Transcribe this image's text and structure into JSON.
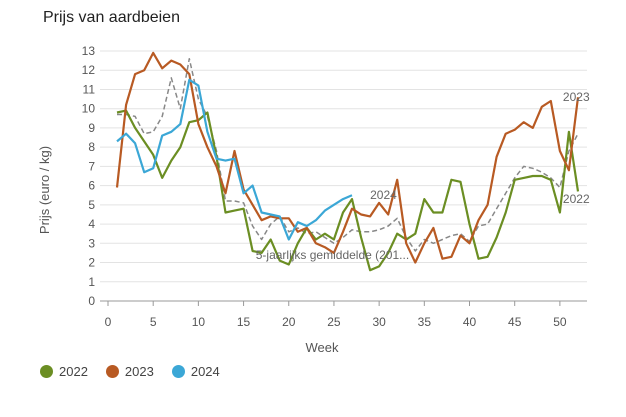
{
  "title": "Prijs van aardbeien",
  "chart_data": {
    "type": "line",
    "title": "Prijs van aardbeien",
    "xlabel": "Week",
    "ylabel": "Prijs (euro / kg)",
    "xlim": [
      0,
      52
    ],
    "ylim": [
      0,
      13
    ],
    "xticks": [
      0,
      5,
      10,
      15,
      20,
      25,
      30,
      35,
      40,
      45,
      50
    ],
    "yticks": [
      0,
      1,
      2,
      3,
      4,
      5,
      6,
      7,
      8,
      9,
      10,
      11,
      12,
      13
    ],
    "grid": true,
    "legend_position": "bottom-left",
    "series": [
      {
        "name": "2022",
        "color": "#6b8e23",
        "points": [
          [
            1,
            9.8
          ],
          [
            2,
            9.9
          ],
          [
            3,
            9.0
          ],
          [
            4,
            8.3
          ],
          [
            5,
            7.6
          ],
          [
            6,
            6.4
          ],
          [
            7,
            7.3
          ],
          [
            8,
            8.0
          ],
          [
            9,
            9.3
          ],
          [
            10,
            9.4
          ],
          [
            11,
            9.8
          ],
          [
            12,
            7.5
          ],
          [
            13,
            4.6
          ],
          [
            14,
            4.7
          ],
          [
            15,
            4.8
          ],
          [
            16,
            2.6
          ],
          [
            17,
            2.5
          ],
          [
            18,
            3.2
          ],
          [
            19,
            2.1
          ],
          [
            20,
            1.9
          ],
          [
            21,
            3.0
          ],
          [
            22,
            3.8
          ],
          [
            23,
            3.2
          ],
          [
            24,
            3.5
          ],
          [
            25,
            3.2
          ],
          [
            26,
            4.6
          ],
          [
            27,
            5.3
          ],
          [
            28,
            3.3
          ],
          [
            29,
            1.6
          ],
          [
            30,
            1.8
          ],
          [
            31,
            2.5
          ],
          [
            32,
            3.5
          ],
          [
            33,
            3.2
          ],
          [
            34,
            3.5
          ],
          [
            35,
            5.3
          ],
          [
            36,
            4.6
          ],
          [
            37,
            4.6
          ],
          [
            38,
            6.3
          ],
          [
            39,
            6.2
          ],
          [
            40,
            4.0
          ],
          [
            41,
            2.2
          ],
          [
            42,
            2.3
          ],
          [
            43,
            3.3
          ],
          [
            44,
            4.6
          ],
          [
            45,
            6.3
          ],
          [
            46,
            6.4
          ],
          [
            47,
            6.5
          ],
          [
            48,
            6.5
          ],
          [
            49,
            6.3
          ],
          [
            50,
            4.6
          ],
          [
            51,
            8.8
          ],
          [
            52,
            5.7
          ]
        ]
      },
      {
        "name": "2023",
        "color": "#b85a23",
        "points": [
          [
            1,
            5.9
          ],
          [
            2,
            10.2
          ],
          [
            3,
            11.8
          ],
          [
            4,
            12.0
          ],
          [
            5,
            12.9
          ],
          [
            6,
            12.1
          ],
          [
            7,
            12.5
          ],
          [
            8,
            12.3
          ],
          [
            9,
            11.8
          ],
          [
            10,
            9.2
          ],
          [
            11,
            8.0
          ],
          [
            12,
            7.0
          ],
          [
            13,
            5.6
          ],
          [
            14,
            7.8
          ],
          [
            15,
            5.8
          ],
          [
            16,
            5.0
          ],
          [
            17,
            4.2
          ],
          [
            18,
            4.4
          ],
          [
            19,
            4.3
          ],
          [
            20,
            4.3
          ],
          [
            21,
            3.6
          ],
          [
            22,
            3.8
          ],
          [
            23,
            3.0
          ],
          [
            24,
            2.8
          ],
          [
            25,
            2.5
          ],
          [
            26,
            3.6
          ],
          [
            27,
            4.8
          ],
          [
            28,
            4.5
          ],
          [
            29,
            4.4
          ],
          [
            30,
            5.1
          ],
          [
            31,
            4.5
          ],
          [
            32,
            6.3
          ],
          [
            33,
            3.0
          ],
          [
            34,
            2.0
          ],
          [
            35,
            3.0
          ],
          [
            36,
            3.8
          ],
          [
            37,
            2.2
          ],
          [
            38,
            2.3
          ],
          [
            39,
            3.4
          ],
          [
            40,
            3.0
          ],
          [
            41,
            4.2
          ],
          [
            42,
            5.0
          ],
          [
            43,
            7.5
          ],
          [
            44,
            8.7
          ],
          [
            45,
            8.9
          ],
          [
            46,
            9.3
          ],
          [
            47,
            9.0
          ],
          [
            48,
            10.1
          ],
          [
            49,
            10.4
          ],
          [
            50,
            7.8
          ],
          [
            51,
            6.8
          ],
          [
            52,
            10.6
          ]
        ]
      },
      {
        "name": "2024",
        "color": "#3ba7d6",
        "points": [
          [
            1,
            8.3
          ],
          [
            2,
            8.7
          ],
          [
            3,
            8.2
          ],
          [
            4,
            6.7
          ],
          [
            5,
            6.9
          ],
          [
            6,
            8.6
          ],
          [
            7,
            8.8
          ],
          [
            8,
            9.2
          ],
          [
            9,
            11.5
          ],
          [
            10,
            11.2
          ],
          [
            11,
            8.8
          ],
          [
            12,
            7.4
          ],
          [
            13,
            7.3
          ],
          [
            14,
            7.4
          ],
          [
            15,
            5.6
          ],
          [
            16,
            6.0
          ],
          [
            17,
            4.6
          ],
          [
            18,
            4.5
          ],
          [
            19,
            4.4
          ],
          [
            20,
            3.2
          ],
          [
            21,
            4.1
          ],
          [
            22,
            3.9
          ],
          [
            23,
            4.2
          ],
          [
            24,
            4.7
          ],
          [
            25,
            5.0
          ],
          [
            26,
            5.3
          ],
          [
            27,
            5.5
          ]
        ]
      },
      {
        "name": "5-jaarlijks gemiddelde (201...",
        "color": "#888888",
        "dashed": true,
        "points": [
          [
            1,
            9.7
          ],
          [
            2,
            9.7
          ],
          [
            3,
            9.6
          ],
          [
            4,
            8.7
          ],
          [
            5,
            8.8
          ],
          [
            6,
            9.6
          ],
          [
            7,
            11.6
          ],
          [
            8,
            10.0
          ],
          [
            9,
            12.6
          ],
          [
            10,
            10.5
          ],
          [
            11,
            9.6
          ],
          [
            12,
            7.8
          ],
          [
            13,
            5.2
          ],
          [
            14,
            5.2
          ],
          [
            15,
            5.1
          ],
          [
            16,
            3.9
          ],
          [
            17,
            3.2
          ],
          [
            18,
            4.0
          ],
          [
            19,
            4.4
          ],
          [
            20,
            3.6
          ],
          [
            21,
            3.8
          ],
          [
            22,
            3.5
          ],
          [
            23,
            3.6
          ],
          [
            24,
            3.3
          ],
          [
            25,
            3.0
          ],
          [
            26,
            3.3
          ],
          [
            27,
            3.7
          ],
          [
            28,
            3.6
          ],
          [
            29,
            3.6
          ],
          [
            30,
            3.7
          ],
          [
            31,
            3.9
          ],
          [
            32,
            4.3
          ],
          [
            33,
            3.3
          ],
          [
            34,
            2.6
          ],
          [
            35,
            3.2
          ],
          [
            36,
            3.0
          ],
          [
            37,
            3.2
          ],
          [
            38,
            3.4
          ],
          [
            39,
            3.5
          ],
          [
            40,
            3.1
          ],
          [
            41,
            3.9
          ],
          [
            42,
            4.0
          ],
          [
            43,
            4.8
          ],
          [
            44,
            5.6
          ],
          [
            45,
            6.4
          ],
          [
            46,
            7.0
          ],
          [
            47,
            6.9
          ],
          [
            48,
            6.7
          ],
          [
            49,
            6.4
          ],
          [
            50,
            5.9
          ],
          [
            51,
            7.8
          ],
          [
            52,
            8.7
          ]
        ]
      }
    ],
    "annotations": [
      {
        "text": "2023",
        "x": 51,
        "y": 10.6
      },
      {
        "text": "2022",
        "x": 51,
        "y": 5.3
      },
      {
        "text": "2024",
        "x": 29,
        "y": 5.5
      },
      {
        "text": "5-jaarlijks gemiddelde (201...",
        "x": 20,
        "y": 2.4
      }
    ]
  }
}
